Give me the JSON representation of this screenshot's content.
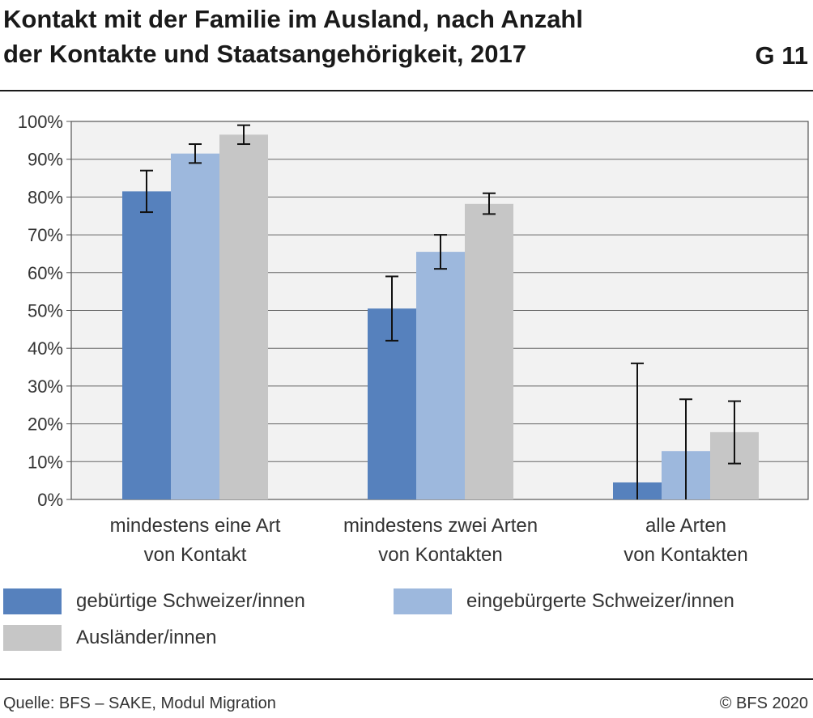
{
  "header": {
    "title_line1": "Kontakt mit der Familie im Ausland, nach Anzahl",
    "title_line2": "der Kontakte und Staatsangehörigkeit, 2017",
    "figure_number": "G 11"
  },
  "chart_data": {
    "type": "bar",
    "title": "Kontakt mit der Familie im Ausland, nach Anzahl der Kontakte und Staatsangehörigkeit, 2017",
    "categories": [
      [
        "mindestens eine Art",
        "von Kontakt"
      ],
      [
        "mindestens zwei Arten",
        "von Kontakten"
      ],
      [
        "alle Arten",
        "von Kontakten"
      ]
    ],
    "series": [
      {
        "name": "gebürtige Schweizer/innen",
        "color": "#5681bd",
        "values": [
          81.5,
          50.5,
          4.5
        ],
        "error_low": [
          76,
          42,
          0
        ],
        "error_high": [
          87,
          59,
          36
        ]
      },
      {
        "name": "eingebürgerte Schweizer/innen",
        "color": "#9db8dd",
        "values": [
          91.5,
          65.5,
          12.8
        ],
        "error_low": [
          89,
          61,
          0
        ],
        "error_high": [
          94,
          70,
          26.5
        ]
      },
      {
        "name": "Ausländer/innen",
        "color": "#c6c6c6",
        "values": [
          96.5,
          78.2,
          17.8
        ],
        "error_low": [
          94,
          75.5,
          9.5
        ],
        "error_high": [
          99,
          81,
          26
        ]
      }
    ],
    "yticks": [
      "0%",
      "10%",
      "20%",
      "30%",
      "40%",
      "50%",
      "60%",
      "70%",
      "80%",
      "90%",
      "100%"
    ],
    "ylim": [
      0,
      100
    ],
    "grid": true,
    "legend_position": "bottom"
  },
  "footer": {
    "source": "Quelle: BFS – SAKE, Modul Migration",
    "copyright": "© BFS 2020"
  }
}
